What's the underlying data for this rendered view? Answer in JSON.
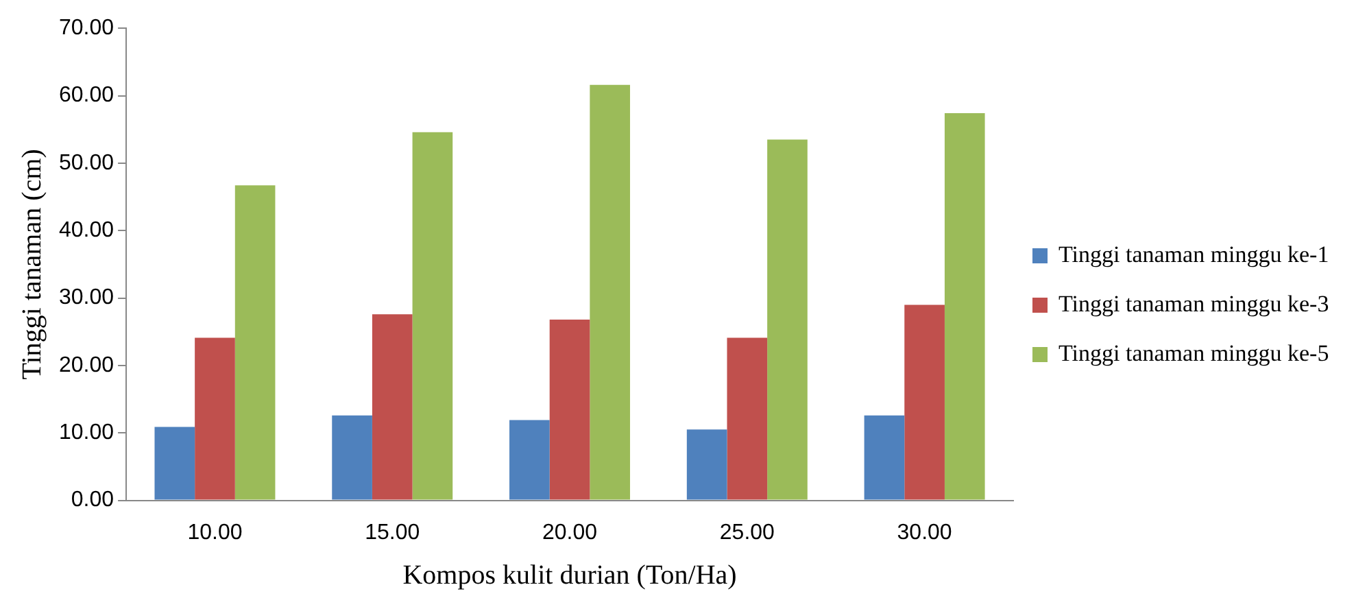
{
  "chart_data": {
    "type": "bar",
    "xlabel": "Kompos kulit durian (Ton/Ha)",
    "ylabel": "Tinggi tanaman (cm)",
    "categories": [
      "10.00",
      "15.00",
      "20.00",
      "25.00",
      "30.00"
    ],
    "series": [
      {
        "name": "Tinggi tanaman minggu ke-1",
        "color": "#4f81bd",
        "values": [
          10.9,
          12.6,
          11.9,
          10.5,
          12.6
        ]
      },
      {
        "name": "Tinggi tanaman minggu ke-3",
        "color": "#c0504d",
        "values": [
          24.1,
          27.6,
          26.8,
          24.1,
          29.0
        ]
      },
      {
        "name": "Tinggi tanaman minggu ke-5",
        "color": "#9bbb59",
        "values": [
          46.7,
          54.6,
          61.6,
          53.5,
          57.4
        ]
      }
    ],
    "ylim": [
      0,
      70
    ],
    "yticks": [
      {
        "value": 0,
        "label": "0.00"
      },
      {
        "value": 10,
        "label": "10.00"
      },
      {
        "value": 20,
        "label": "20.00"
      },
      {
        "value": 30,
        "label": "30.00"
      },
      {
        "value": 40,
        "label": "40.00"
      },
      {
        "value": 50,
        "label": "50.00"
      },
      {
        "value": 60,
        "label": "60.00"
      },
      {
        "value": 70,
        "label": "70.00"
      }
    ],
    "grid": false,
    "legend": "right"
  }
}
